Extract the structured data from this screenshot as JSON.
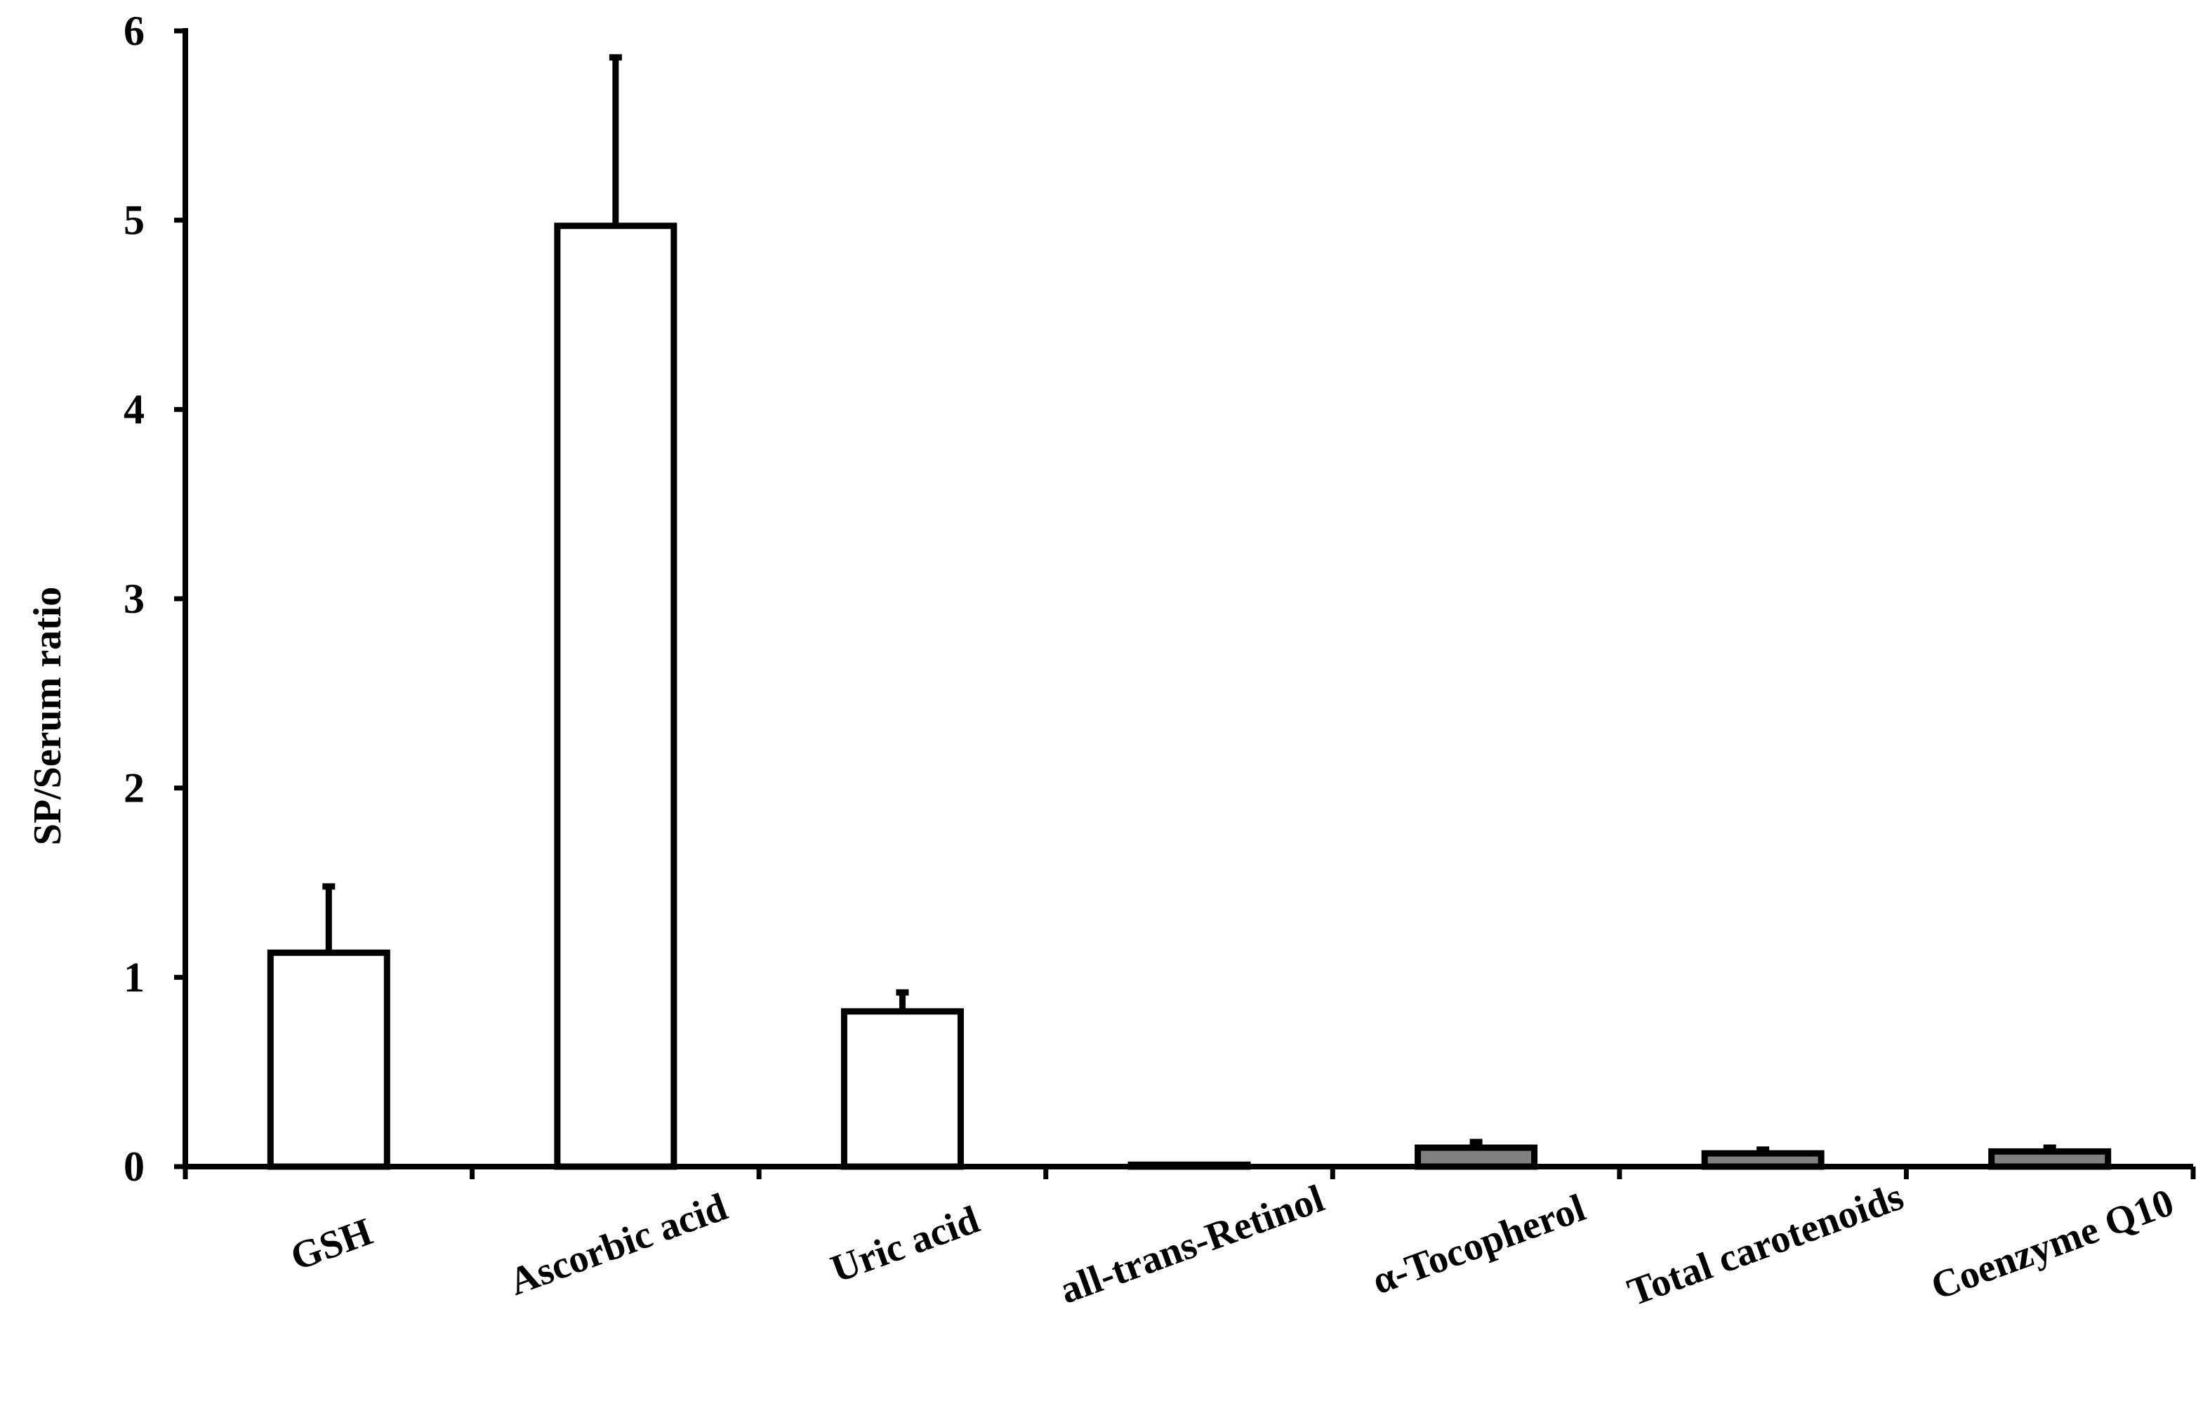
{
  "chart_data": {
    "type": "bar",
    "title": "",
    "xlabel": "",
    "ylabel": "SP/Serum ratio",
    "ylim": [
      0,
      6
    ],
    "yticks": [
      0,
      1,
      2,
      3,
      4,
      5,
      6
    ],
    "categories": [
      "GSH",
      "Ascorbic acid",
      "Uric acid",
      "all-trans-Retinol",
      "α-Tocopherol",
      "Total carotenoids",
      "Coenzyme Q10"
    ],
    "values": [
      1.13,
      4.97,
      0.82,
      0.01,
      0.1,
      0.07,
      0.08
    ],
    "errors": [
      0.35,
      0.89,
      0.1,
      0.0,
      0.03,
      0.02,
      0.02
    ],
    "bar_fills": [
      "#ffffff",
      "#ffffff",
      "#ffffff",
      "#ffffff",
      "#808080",
      "#808080",
      "#808080"
    ],
    "grid": false,
    "legend": "none"
  }
}
